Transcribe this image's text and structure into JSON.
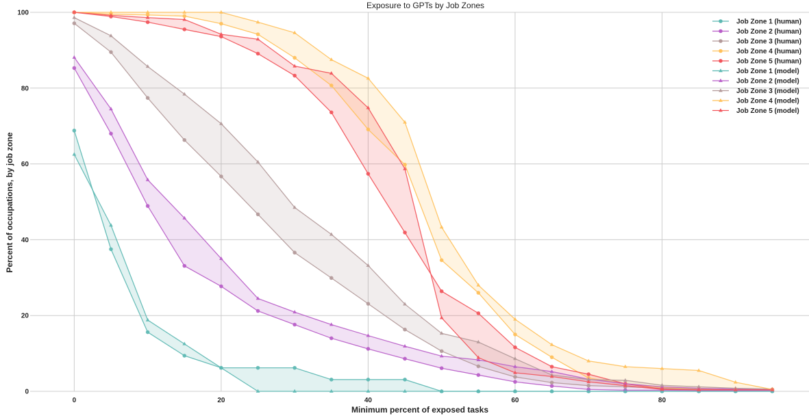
{
  "chart_data": {
    "type": "line",
    "title": "Exposure to GPTs by Job Zones",
    "xlabel": "Minimum percent of exposed tasks",
    "ylabel": "Percent of occupations, by job zone",
    "xlim": [
      -6,
      100
    ],
    "ylim": [
      0,
      100
    ],
    "x_ticks": [
      0,
      20,
      40,
      60,
      80
    ],
    "y_ticks": [
      0,
      20,
      40,
      60,
      80,
      100
    ],
    "grid": true,
    "legend_position": "top-right",
    "x": [
      0,
      5,
      10,
      15,
      20,
      25,
      30,
      35,
      40,
      45,
      50,
      55,
      60,
      65,
      70,
      75,
      80,
      85,
      90,
      95
    ],
    "series": [
      {
        "name": "Job Zone 1 (human)",
        "zone": 1,
        "kind": "human",
        "marker": "circle",
        "color": "#5cb8b2",
        "values": [
          68.8,
          37.5,
          15.6,
          9.4,
          6.2,
          6.2,
          6.2,
          3.1,
          3.1,
          3.1,
          0,
          0,
          0,
          0,
          0,
          0,
          0,
          0,
          0,
          0
        ]
      },
      {
        "name": "Job Zone 2 (human)",
        "zone": 2,
        "kind": "human",
        "marker": "circle",
        "color": "#b85dc8",
        "values": [
          85.3,
          68.0,
          48.9,
          33.1,
          27.7,
          21.2,
          17.6,
          14.0,
          11.2,
          8.6,
          6.1,
          4.3,
          2.5,
          1.4,
          0.5,
          0.3,
          0.3,
          0.2,
          0.2,
          0.2
        ]
      },
      {
        "name": "Job Zone 3 (human)",
        "zone": 3,
        "kind": "human",
        "marker": "circle",
        "color": "#b39999",
        "values": [
          97.1,
          89.5,
          77.4,
          66.3,
          56.7,
          46.7,
          36.6,
          29.9,
          23.1,
          16.3,
          10.6,
          6.6,
          3.8,
          2.3,
          1.5,
          1.2,
          0.8,
          0.6,
          0.5,
          0.4
        ]
      },
      {
        "name": "Job Zone 4 (human)",
        "zone": 4,
        "kind": "human",
        "marker": "circle",
        "color": "#ffc05a",
        "values": [
          100,
          99.5,
          99.3,
          99.0,
          97.0,
          94.2,
          88.0,
          80.7,
          69.1,
          59.8,
          34.6,
          26.0,
          15.0,
          9.0,
          3.5,
          2.0,
          1.0,
          0.7,
          0.5,
          0.5
        ]
      },
      {
        "name": "Job Zone 5 (human)",
        "zone": 5,
        "kind": "human",
        "marker": "circle",
        "color": "#f2545b",
        "values": [
          100,
          98.9,
          97.4,
          95.5,
          93.6,
          89.1,
          83.3,
          73.6,
          57.4,
          41.9,
          26.4,
          20.6,
          11.6,
          6.5,
          4.5,
          2.0,
          0.6,
          0.4,
          0.4,
          0.4
        ]
      },
      {
        "name": "Job Zone 1 (model)",
        "zone": 1,
        "kind": "model",
        "marker": "triangle",
        "color": "#5cb8b2",
        "values": [
          62.5,
          43.8,
          18.8,
          12.5,
          6.2,
          0,
          0,
          0,
          0,
          0,
          0,
          0,
          0,
          0,
          0,
          0,
          0,
          0,
          0,
          0
        ]
      },
      {
        "name": "Job Zone 2 (model)",
        "zone": 2,
        "kind": "model",
        "marker": "triangle",
        "color": "#b85dc8",
        "values": [
          88.1,
          74.5,
          55.8,
          45.7,
          35.0,
          24.5,
          20.9,
          17.6,
          14.7,
          11.9,
          9.3,
          8.3,
          6.5,
          5.2,
          3.2,
          2.0,
          1.2,
          0.8,
          0.6,
          0.5
        ]
      },
      {
        "name": "Job Zone 3 (model)",
        "zone": 3,
        "kind": "model",
        "marker": "triangle",
        "color": "#b39999",
        "values": [
          98.6,
          93.8,
          85.7,
          78.4,
          70.6,
          60.5,
          48.5,
          41.4,
          33.2,
          23.0,
          15.3,
          13.0,
          8.6,
          4.3,
          3.1,
          2.9,
          1.6,
          1.2,
          0.8,
          0.6
        ]
      },
      {
        "name": "Job Zone 4 (model)",
        "zone": 4,
        "kind": "model",
        "marker": "triangle",
        "color": "#ffc05a",
        "values": [
          100,
          100,
          100,
          100,
          100,
          97.4,
          94.6,
          87.5,
          82.6,
          71.0,
          43.3,
          28.0,
          19.0,
          12.3,
          8.0,
          6.5,
          6.0,
          5.5,
          2.4,
          0.5
        ]
      },
      {
        "name": "Job Zone 5 (model)",
        "zone": 5,
        "kind": "model",
        "marker": "triangle",
        "color": "#f2545b",
        "values": [
          100,
          99.2,
          98.6,
          98.1,
          94.2,
          92.9,
          85.8,
          83.9,
          74.8,
          58.7,
          19.4,
          8.9,
          4.9,
          3.9,
          2.5,
          1.5,
          0.5,
          0.4,
          0.4,
          0.4
        ]
      }
    ]
  }
}
